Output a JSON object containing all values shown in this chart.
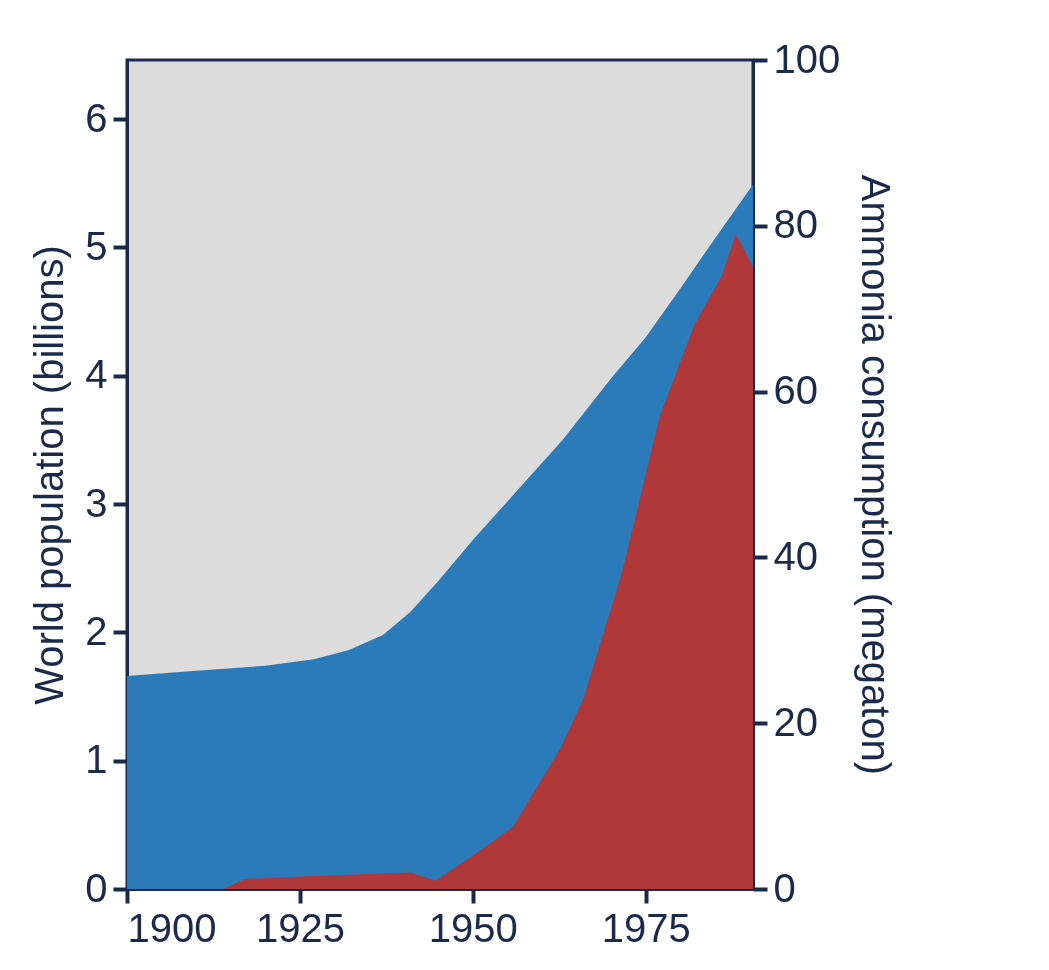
{
  "chart_data": {
    "type": "area",
    "xlim": [
      1900,
      1990.5
    ],
    "xticks": [
      1900,
      1925,
      1950,
      1975
    ],
    "ylim": [
      0,
      6.46
    ],
    "yticks": [
      0,
      1,
      2,
      3,
      4,
      5,
      6
    ],
    "y2lim": [
      0,
      100
    ],
    "y2ticks": [
      0,
      20,
      40,
      60,
      80,
      100
    ],
    "ylabel": "World population (billions)",
    "y2label": "Ammonia consumption (megaton)",
    "grid": false,
    "series": [
      {
        "color": "#2b7bba",
        "x": [
          1900,
          1910,
          1920,
          1927,
          1932,
          1937,
          1941,
          1945,
          1950,
          1955,
          1963,
          1970,
          1975,
          1980,
          1985,
          1990.5
        ],
        "values": [
          1.66,
          1.7,
          1.74,
          1.79,
          1.86,
          1.98,
          2.16,
          2.4,
          2.72,
          3.02,
          3.5,
          3.98,
          4.3,
          4.68,
          5.07,
          5.49
        ]
      },
      {
        "color": "#b03838",
        "axis": "y2",
        "x": [
          1914,
          1917,
          1925,
          1935,
          1941,
          1944.6,
          1950,
          1955.8,
          1962.7,
          1966,
          1971.5,
          1975,
          1977,
          1982,
          1986,
          1988,
          1990.5
        ],
        "values": [
          0,
          1.2,
          1.5,
          1.8,
          2.0,
          1.0,
          4.0,
          7.5,
          17,
          23,
          38,
          50,
          57,
          68,
          74,
          79,
          75
        ]
      }
    ]
  }
}
